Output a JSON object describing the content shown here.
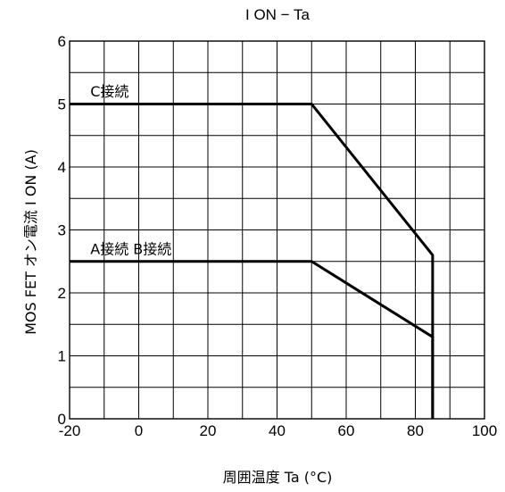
{
  "chart_data": {
    "type": "line",
    "title": "I ON − Ta",
    "xlabel": "周囲温度  Ta (°C)",
    "ylabel": "MOS FET オン電流  I ON (A)",
    "xlim": [
      -20,
      100
    ],
    "ylim": [
      0,
      6
    ],
    "x_ticks": [
      "-20",
      "0",
      "20",
      "40",
      "60",
      "80",
      "100"
    ],
    "y_ticks": [
      "0",
      "1",
      "2",
      "3",
      "4",
      "5",
      "6"
    ],
    "x_minor_step": 10,
    "y_minor_step": 0.5,
    "grid": true,
    "series": [
      {
        "name": "C接続",
        "x": [
          -20,
          50,
          85,
          85
        ],
        "y": [
          5,
          5,
          2.6,
          0
        ]
      },
      {
        "name": "A接続 B接続",
        "x": [
          -20,
          50,
          85,
          85
        ],
        "y": [
          2.5,
          2.5,
          1.3,
          0
        ]
      }
    ],
    "annotations": [
      {
        "text": "C接続",
        "x": -14,
        "y": 5.12
      },
      {
        "text": "A接続  B接続",
        "x": -14,
        "y": 2.62
      }
    ]
  }
}
